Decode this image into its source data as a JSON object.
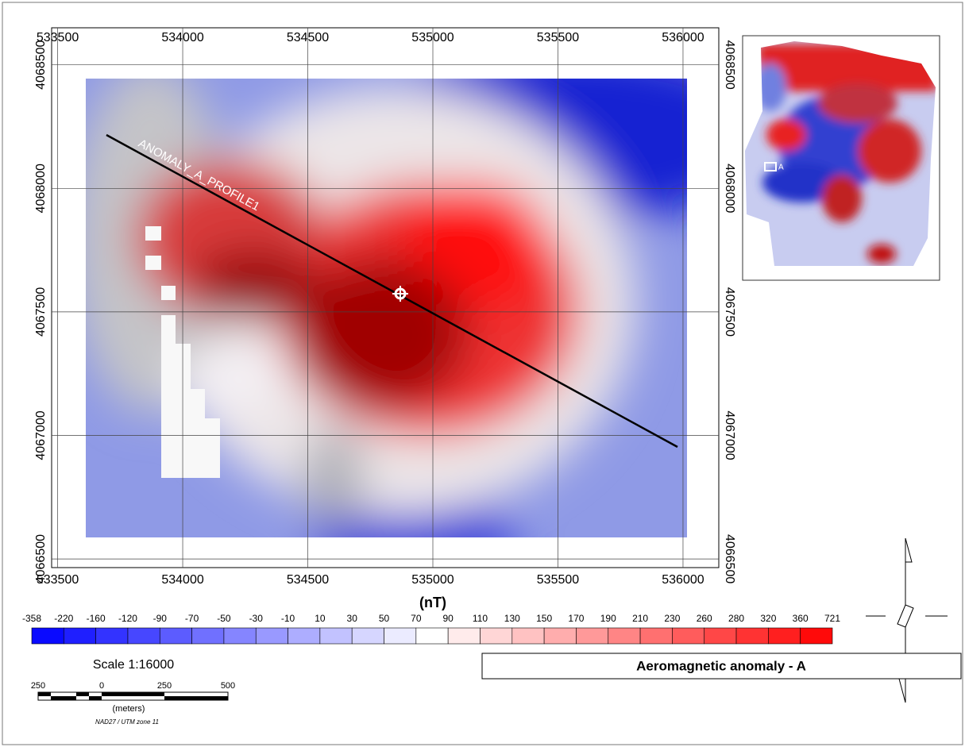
{
  "map": {
    "title": "Aeromagnetic anomaly - A",
    "xlim": [
      533476,
      536143
    ],
    "ylim": [
      4066465,
      4068650
    ],
    "xticks": [
      533500,
      534000,
      534500,
      535000,
      535500,
      536000
    ],
    "yticks": [
      4066500,
      4067000,
      4067500,
      4068000,
      4068500
    ],
    "grid": true,
    "profile": {
      "label": "ANOMALY_A_PROFILE1"
    }
  },
  "colorbar": {
    "unit": "(nT)",
    "ticks": [
      -358,
      -220,
      -160,
      -120,
      -90,
      -70,
      -50,
      -30,
      -10,
      10,
      30,
      50,
      70,
      90,
      110,
      130,
      150,
      170,
      190,
      210,
      230,
      260,
      280,
      320,
      360,
      721
    ],
    "colors": [
      "#0000ff",
      "#ffffff",
      "#ff0000"
    ]
  },
  "scale": {
    "text": "Scale 1:16000",
    "labels": [
      "250",
      "0",
      "250",
      "500"
    ],
    "unit": "(meters)",
    "projection": "NAD27 / UTM zone 11"
  },
  "inset": {
    "label": "A"
  }
}
